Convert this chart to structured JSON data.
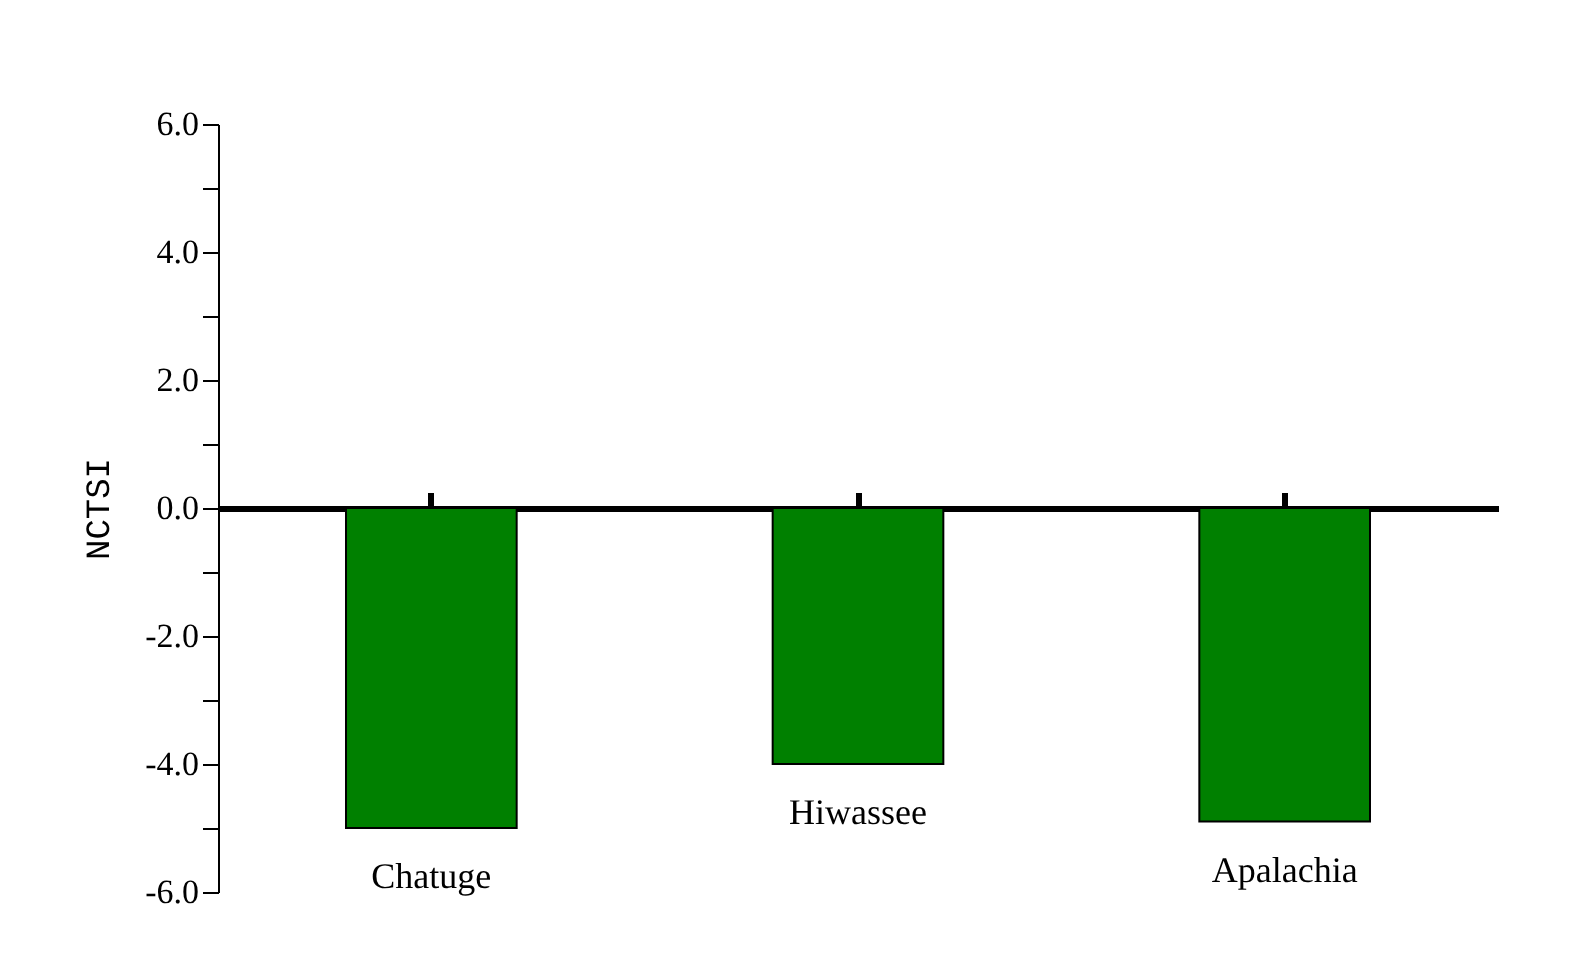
{
  "chart_data": {
    "type": "bar",
    "ylabel": "NCTSI",
    "categories": [
      "Chatuge",
      "Hiwassee",
      "Apalachia"
    ],
    "values": [
      -5.0,
      -4.0,
      -4.9
    ],
    "color": "#008000",
    "ylim": [
      -6,
      6
    ],
    "yticks": [
      {
        "value": -6,
        "label": "-6.0"
      },
      {
        "value": -5,
        "label": null
      },
      {
        "value": -4,
        "label": "-4.0"
      },
      {
        "value": -3,
        "label": null
      },
      {
        "value": -2,
        "label": "-2.0"
      },
      {
        "value": -1,
        "label": null
      },
      {
        "value": 0,
        "label": "0.0"
      },
      {
        "value": 1,
        "label": null
      },
      {
        "value": 2,
        "label": "2.0"
      },
      {
        "value": 3,
        "label": null
      },
      {
        "value": 4,
        "label": "4.0"
      },
      {
        "value": 5,
        "label": null
      },
      {
        "value": 6,
        "label": "6.0"
      }
    ],
    "legend": false,
    "tick_labels": "y"
  }
}
